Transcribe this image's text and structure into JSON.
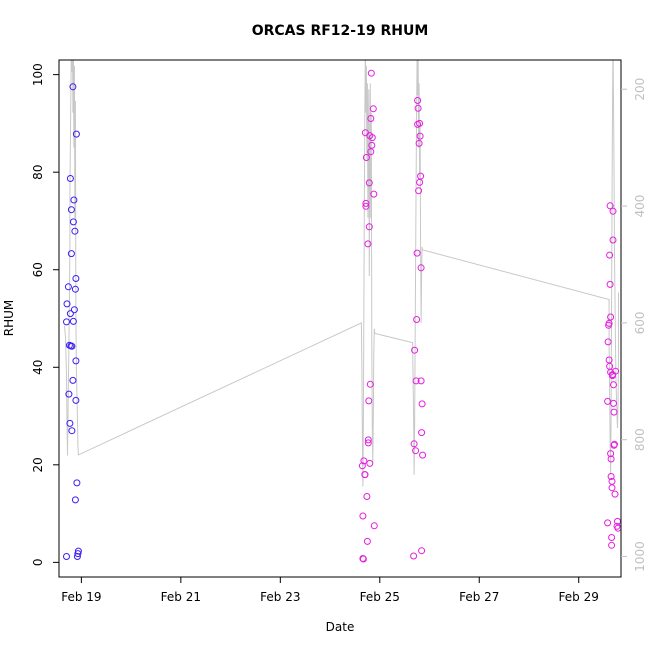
{
  "chart_data": {
    "type": "scatter",
    "title": "ORCAS RF12-19 RHUM",
    "xlabel": "Date",
    "ylabel": "RHUM",
    "xlim": [
      18.55,
      29.85
    ],
    "ylim": [
      -3,
      103
    ],
    "x_ticks": [
      {
        "value": 19,
        "label": "Feb 19"
      },
      {
        "value": 21,
        "label": "Feb 21"
      },
      {
        "value": 23,
        "label": "Feb 23"
      },
      {
        "value": 25,
        "label": "Feb 25"
      },
      {
        "value": 27,
        "label": "Feb 27"
      },
      {
        "value": 29,
        "label": "Feb 29"
      }
    ],
    "y_ticks": [
      0,
      20,
      40,
      60,
      80,
      100
    ],
    "y2lim": [
      1035,
      150
    ],
    "y2_ticks": [
      200,
      400,
      600,
      800,
      1000
    ],
    "grid": false,
    "colors": {
      "series1": "#3b1ff5",
      "series2": "#e61ee0",
      "line": "#c8c8c8",
      "right_axis": "#c0c0c0"
    },
    "series": [
      {
        "color": "#3b1ff5",
        "points": [
          [
            18.7,
            1.2
          ],
          [
            18.7,
            49.3
          ],
          [
            18.71,
            53.0
          ],
          [
            18.74,
            56.5
          ],
          [
            18.75,
            34.5
          ],
          [
            18.76,
            44.5
          ],
          [
            18.77,
            28.5
          ],
          [
            18.78,
            51.0
          ],
          [
            18.78,
            78.7
          ],
          [
            18.79,
            44.4
          ],
          [
            18.8,
            72.3
          ],
          [
            18.8,
            63.3
          ],
          [
            18.81,
            44.3
          ],
          [
            18.81,
            27.0
          ],
          [
            18.83,
            37.3
          ],
          [
            18.83,
            97.5
          ],
          [
            18.84,
            69.8
          ],
          [
            18.84,
            49.4
          ],
          [
            18.85,
            74.3
          ],
          [
            18.86,
            51.8
          ],
          [
            18.87,
            67.9
          ],
          [
            18.88,
            56.0
          ],
          [
            18.88,
            12.8
          ],
          [
            18.89,
            58.2
          ],
          [
            18.89,
            41.3
          ],
          [
            18.89,
            33.2
          ],
          [
            18.9,
            87.8
          ],
          [
            18.91,
            16.3
          ],
          [
            18.92,
            1.2
          ],
          [
            18.93,
            1.8
          ],
          [
            18.94,
            2.3
          ]
        ]
      },
      {
        "color": "#e61ee0",
        "points": [
          [
            24.65,
            19.8
          ],
          [
            24.66,
            9.5
          ],
          [
            24.66,
            0.8
          ],
          [
            24.67,
            0.7
          ],
          [
            24.68,
            20.8
          ],
          [
            24.7,
            18.0
          ],
          [
            24.7,
            18.0
          ],
          [
            24.71,
            88.1
          ],
          [
            24.72,
            73.6
          ],
          [
            24.72,
            73.0
          ],
          [
            24.73,
            83.0
          ],
          [
            24.74,
            13.5
          ],
          [
            24.75,
            4.3
          ],
          [
            24.76,
            65.3
          ],
          [
            24.77,
            24.5
          ],
          [
            24.77,
            25.1
          ],
          [
            24.78,
            33.1
          ],
          [
            24.79,
            68.8
          ],
          [
            24.79,
            77.8
          ],
          [
            24.8,
            87.5
          ],
          [
            24.8,
            20.3
          ],
          [
            24.81,
            36.5
          ],
          [
            24.82,
            91.0
          ],
          [
            24.82,
            84.2
          ],
          [
            24.83,
            100.3
          ],
          [
            24.84,
            85.5
          ],
          [
            24.85,
            87.1
          ],
          [
            24.87,
            93.0
          ],
          [
            24.88,
            75.5
          ],
          [
            24.89,
            7.5
          ],
          [
            25.68,
            1.3
          ],
          [
            25.69,
            24.3
          ],
          [
            25.7,
            43.5
          ],
          [
            25.72,
            22.9
          ],
          [
            25.73,
            37.2
          ],
          [
            25.74,
            49.8
          ],
          [
            25.75,
            63.4
          ],
          [
            25.76,
            94.7
          ],
          [
            25.76,
            89.8
          ],
          [
            25.77,
            93.1
          ],
          [
            25.78,
            76.2
          ],
          [
            25.79,
            85.9
          ],
          [
            25.8,
            77.9
          ],
          [
            25.8,
            90.0
          ],
          [
            25.81,
            87.4
          ],
          [
            25.82,
            79.2
          ],
          [
            25.83,
            60.4
          ],
          [
            25.83,
            37.2
          ],
          [
            25.84,
            2.4
          ],
          [
            25.84,
            26.6
          ],
          [
            25.85,
            32.5
          ],
          [
            25.86,
            22.0
          ],
          [
            29.58,
            8.1
          ],
          [
            29.58,
            33.0
          ],
          [
            29.59,
            45.2
          ],
          [
            29.6,
            48.6
          ],
          [
            29.61,
            49.0
          ],
          [
            29.61,
            41.5
          ],
          [
            29.62,
            40.2
          ],
          [
            29.62,
            63.0
          ],
          [
            29.63,
            73.1
          ],
          [
            29.63,
            57.0
          ],
          [
            29.64,
            39.0
          ],
          [
            29.64,
            50.3
          ],
          [
            29.64,
            22.3
          ],
          [
            29.65,
            21.2
          ],
          [
            29.65,
            17.6
          ],
          [
            29.66,
            5.1
          ],
          [
            29.66,
            3.5
          ],
          [
            29.67,
            16.6
          ],
          [
            29.67,
            15.3
          ],
          [
            29.68,
            38.5
          ],
          [
            29.68,
            38.3
          ],
          [
            29.69,
            66.1
          ],
          [
            29.69,
            72.0
          ],
          [
            29.7,
            36.4
          ],
          [
            29.7,
            32.6
          ],
          [
            29.71,
            30.8
          ],
          [
            29.71,
            24.0
          ],
          [
            29.72,
            24.2
          ],
          [
            29.73,
            14.0
          ],
          [
            29.74,
            39.2
          ],
          [
            29.77,
            7.4
          ],
          [
            29.78,
            8.4
          ],
          [
            29.79,
            7.0
          ]
        ]
      }
    ],
    "line_series": {
      "color": "#c8c8c8",
      "points": [
        [
          18.66,
          605
        ],
        [
          18.67,
          615
        ],
        [
          18.68,
          624
        ],
        [
          18.7,
          690
        ],
        [
          18.71,
          770
        ],
        [
          18.72,
          827
        ],
        [
          18.73,
          760
        ],
        [
          18.74,
          700
        ],
        [
          18.75,
          640
        ],
        [
          18.76,
          560
        ],
        [
          18.77,
          470
        ],
        [
          18.77,
          380
        ],
        [
          18.78,
          290
        ],
        [
          18.79,
          200
        ],
        [
          18.8,
          120
        ],
        [
          18.81,
          170
        ],
        [
          18.82,
          95
        ],
        [
          18.83,
          240
        ],
        [
          18.84,
          130
        ],
        [
          18.85,
          300
        ],
        [
          18.86,
          160
        ],
        [
          18.87,
          420
        ],
        [
          18.88,
          220
        ],
        [
          18.89,
          590
        ],
        [
          18.9,
          680
        ],
        [
          18.92,
          760
        ],
        [
          18.93,
          810
        ],
        [
          18.94,
          826
        ],
        [
          24.63,
          600
        ],
        [
          24.64,
          680
        ],
        [
          24.65,
          800
        ],
        [
          24.66,
          880
        ],
        [
          24.67,
          760
        ],
        [
          24.68,
          560
        ],
        [
          24.69,
          380
        ],
        [
          24.7,
          220
        ],
        [
          24.71,
          120
        ],
        [
          24.72,
          240
        ],
        [
          24.73,
          160
        ],
        [
          24.74,
          320
        ],
        [
          24.75,
          190
        ],
        [
          24.76,
          420
        ],
        [
          24.77,
          300
        ],
        [
          24.78,
          200
        ],
        [
          24.79,
          520
        ],
        [
          24.8,
          330
        ],
        [
          24.81,
          190
        ],
        [
          24.82,
          420
        ],
        [
          24.83,
          240
        ],
        [
          24.84,
          640
        ],
        [
          24.85,
          780
        ],
        [
          24.86,
          840
        ],
        [
          24.87,
          760
        ],
        [
          24.88,
          650
        ],
        [
          24.89,
          610
        ],
        [
          24.9,
          618
        ],
        [
          25.66,
          634
        ],
        [
          25.67,
          700
        ],
        [
          25.68,
          760
        ],
        [
          25.69,
          860
        ],
        [
          25.7,
          780
        ],
        [
          25.71,
          640
        ],
        [
          25.72,
          500
        ],
        [
          25.73,
          360
        ],
        [
          25.74,
          240
        ],
        [
          25.75,
          140
        ],
        [
          25.76,
          210
        ],
        [
          25.77,
          130
        ],
        [
          25.78,
          300
        ],
        [
          25.79,
          190
        ],
        [
          25.8,
          350
        ],
        [
          25.81,
          260
        ],
        [
          25.82,
          470
        ],
        [
          25.83,
          600
        ],
        [
          25.84,
          520
        ],
        [
          25.85,
          470
        ],
        [
          25.86,
          475
        ],
        [
          29.61,
          560
        ],
        [
          29.61,
          640
        ],
        [
          29.62,
          720
        ],
        [
          29.63,
          800
        ],
        [
          29.64,
          860
        ],
        [
          29.65,
          760
        ],
        [
          29.66,
          560
        ],
        [
          29.67,
          400
        ],
        [
          29.68,
          230
        ],
        [
          29.69,
          120
        ],
        [
          29.7,
          220
        ],
        [
          29.71,
          330
        ],
        [
          29.72,
          480
        ],
        [
          29.74,
          640
        ],
        [
          29.75,
          700
        ],
        [
          29.77,
          760
        ],
        [
          29.78,
          780
        ],
        [
          29.79,
          740
        ],
        [
          29.8,
          660
        ],
        [
          29.8,
          548
        ]
      ]
    }
  }
}
